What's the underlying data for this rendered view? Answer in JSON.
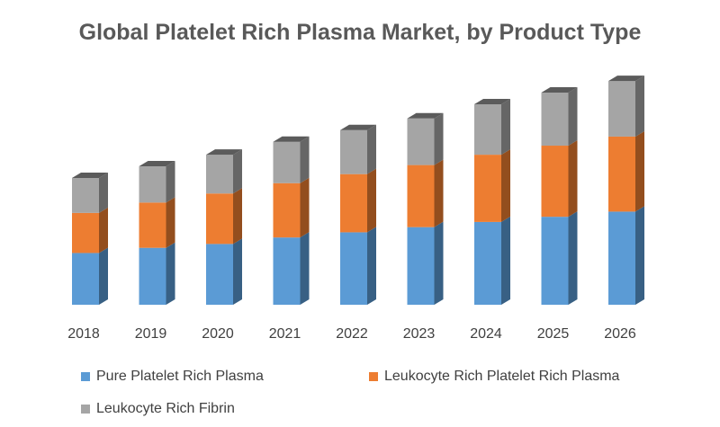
{
  "chart_data": {
    "type": "bar",
    "stacked": true,
    "title": "Global Platelet Rich Plasma Market, by Product Type",
    "categories": [
      "2018",
      "2019",
      "2020",
      "2021",
      "2022",
      "2023",
      "2024",
      "2025",
      "2026"
    ],
    "series": [
      {
        "name": "Pure Platelet Rich Plasma",
        "color": "#5b9bd5",
        "values": [
          40,
          44,
          47,
          52,
          56,
          60,
          64,
          68,
          72
        ]
      },
      {
        "name": "Leukocyte Rich Platelet Rich Plasma",
        "color": "#ed7d31",
        "values": [
          31,
          35,
          39,
          42,
          45,
          48,
          52,
          55,
          58
        ]
      },
      {
        "name": "Leukocyte Rich Fibrin",
        "color": "#a5a5a5",
        "values": [
          27,
          28,
          30,
          32,
          34,
          36,
          39,
          41,
          43
        ]
      }
    ],
    "xlabel": "",
    "ylabel": "",
    "ylim": [
      0,
      180
    ],
    "grid": false,
    "legend": "bottom"
  }
}
